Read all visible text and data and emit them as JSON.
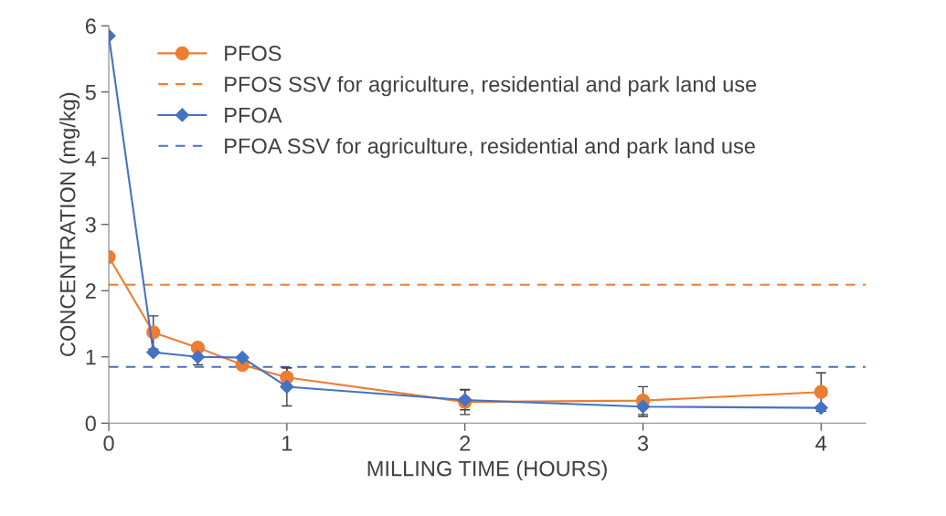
{
  "chart_data": {
    "type": "line",
    "xlabel": "MILLING TIME (HOURS)",
    "ylabel": "CONCENTRATION (mg/kg)",
    "xlim": [
      0,
      4.25
    ],
    "xticks": [
      0,
      1,
      2,
      3,
      4
    ],
    "ylim": [
      0,
      6
    ],
    "yticks": [
      0,
      1,
      2,
      3,
      4,
      5,
      6
    ],
    "grid": false,
    "legend": "top left",
    "series": [
      {
        "name": "PFOS",
        "color": "#ed7d31",
        "marker": "circle",
        "x": [
          0,
          0.25,
          0.5,
          0.75,
          1,
          2,
          3,
          4
        ],
        "values": [
          2.51,
          1.37,
          1.14,
          0.88,
          0.69,
          0.32,
          0.34,
          0.47
        ],
        "errors": [
          null,
          0.25,
          null,
          null,
          0.14,
          0.19,
          0.21,
          0.29
        ]
      },
      {
        "name": "PFOA",
        "color": "#4472c4",
        "marker": "diamond",
        "x": [
          0,
          0.25,
          0.5,
          0.75,
          1,
          2,
          3,
          4
        ],
        "values": [
          5.85,
          1.07,
          1.0,
          0.99,
          0.55,
          0.35,
          0.25,
          0.23
        ],
        "errors": [
          null,
          null,
          0.12,
          null,
          0.29,
          0.15,
          0.15,
          null
        ]
      }
    ],
    "ref_lines": [
      {
        "axis": "y",
        "value": 2.09,
        "label": "PFOS SSV for agriculture, residential and park land use",
        "color": "#ed7d31",
        "line_style": "dashed"
      },
      {
        "axis": "y",
        "value": 0.85,
        "label": "PFOA SSV for agriculture, residential and park land use",
        "color": "#4472c4",
        "line_style": "dashed"
      }
    ]
  }
}
